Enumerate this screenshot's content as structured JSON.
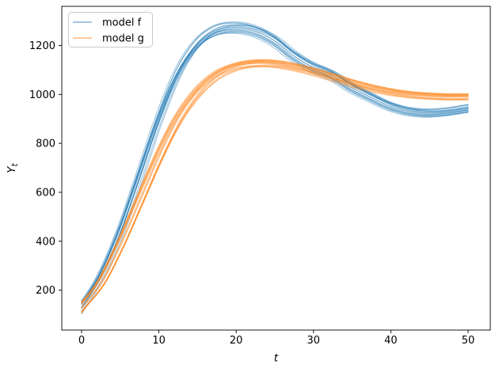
{
  "chart_data": {
    "type": "line",
    "title": "",
    "xlabel": "t",
    "ylabel": "Y_t",
    "ylabel_main": "Y",
    "ylabel_sub": "t",
    "x_ticks": [
      0,
      10,
      20,
      30,
      40,
      50
    ],
    "y_ticks": [
      200,
      400,
      600,
      800,
      1000,
      1200
    ],
    "xlim": [
      -2.56,
      52.87
    ],
    "ylim": [
      37,
      1360
    ],
    "grid": false,
    "legend_position": "upper left",
    "x": [
      0,
      2.5,
      5,
      7.5,
      10,
      12.5,
      15,
      17.5,
      20,
      22.5,
      25,
      27.5,
      30,
      32.5,
      35,
      37.5,
      40,
      42.5,
      45,
      47.5,
      50
    ],
    "series": [
      {
        "name": "model-f",
        "label": "model f",
        "color": "#1f77b4",
        "amp_jitter": 0.02,
        "values": [
          130,
          255,
          435,
          660,
          890,
          1080,
          1200,
          1258,
          1272,
          1260,
          1222,
          1160,
          1113,
          1080,
          1030,
          990,
          953,
          931,
          923,
          928,
          940
        ]
      },
      {
        "name": "model-g",
        "label": "model g",
        "color": "#ff7f0e",
        "amp_jitter": 0.015,
        "values": [
          130,
          230,
          385,
          565,
          745,
          900,
          1010,
          1080,
          1115,
          1128,
          1126,
          1113,
          1094,
          1071,
          1047,
          1027,
          1011,
          1000,
          994,
          991,
          991
        ]
      }
    ],
    "ensemble": {
      "n_members": 16,
      "time_jitter": 0.6,
      "alpha": 0.4,
      "line_width": 1.2,
      "seed": 7
    }
  }
}
